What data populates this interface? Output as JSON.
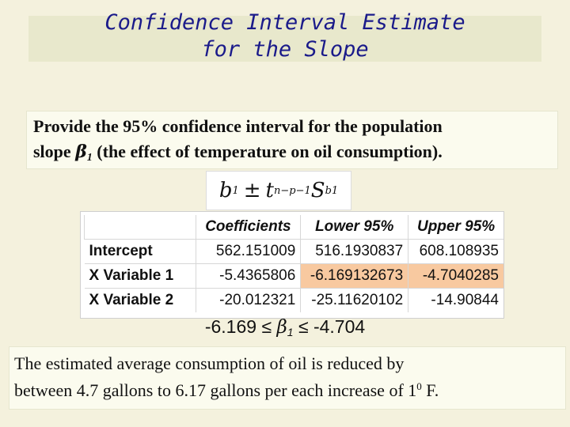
{
  "title": {
    "line1": "Confidence Interval Estimate",
    "line2": "for the Slope"
  },
  "question": {
    "line1": "Provide the 95% confidence interval for the population",
    "line2_prefix": "slope ",
    "beta": "β",
    "beta_sub": "1",
    "line2_suffix": " (the effect of temperature on oil consumption)."
  },
  "formula": {
    "b": "b",
    "b_sub": "1",
    "pm": "±",
    "t": "t",
    "t_sub": "n−p−1",
    "S": "S",
    "S_sub": "b1"
  },
  "table": {
    "headers": [
      "",
      "Coefficients",
      "Lower 95%",
      "Upper 95%"
    ],
    "rows": [
      [
        "Intercept",
        "562.151009",
        "516.1930837",
        "608.108935"
      ],
      [
        "X Variable 1",
        "-5.4365806",
        "-6.169132673",
        "-4.7040285"
      ],
      [
        "X Variable 2",
        "-20.012321",
        "-25.11620102",
        "-14.90844"
      ]
    ]
  },
  "result": {
    "lower": "-6.169",
    "le": "≤",
    "beta": "β",
    "beta_sub": "1",
    "upper": "-4.704"
  },
  "conclusion": {
    "line1": "The estimated average consumption of oil is reduced by",
    "line2_prefix": "between 4.7 gallons to 6.17 gallons per each increase of 1",
    "degree": "0",
    "line2_suffix": " F."
  },
  "colors": {
    "background": "#f4f1dd",
    "title": "#1a1a8a",
    "highlight": "#f8c9a0"
  }
}
